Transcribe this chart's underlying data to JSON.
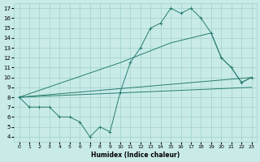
{
  "xlabel": "Humidex (Indice chaleur)",
  "bg_color": "#c8ebe8",
  "grid_color": "#a0d0cc",
  "line_color": "#2a7d6e",
  "xlim": [
    -0.5,
    23.5
  ],
  "ylim": [
    3.5,
    17.5
  ],
  "xticks": [
    0,
    1,
    2,
    3,
    4,
    5,
    6,
    7,
    8,
    9,
    10,
    11,
    12,
    13,
    14,
    15,
    16,
    17,
    18,
    19,
    20,
    21,
    22,
    23
  ],
  "yticks": [
    4,
    5,
    6,
    7,
    8,
    9,
    10,
    11,
    12,
    13,
    14,
    15,
    16,
    17
  ],
  "line1_x": [
    0,
    1,
    2,
    3,
    4,
    5,
    6,
    7,
    8,
    9,
    10,
    11,
    12,
    13,
    14,
    15,
    16,
    17,
    18,
    19,
    20,
    21,
    22,
    23
  ],
  "line1_y": [
    8,
    7,
    7,
    7,
    6,
    6,
    5.5,
    4,
    5,
    4.5,
    8.5,
    11.5,
    13,
    15,
    15.5,
    17,
    16.5,
    17,
    16,
    14.5,
    12,
    11,
    9.5,
    10
  ],
  "line2_x": [
    0,
    10,
    15,
    19,
    20,
    21,
    22,
    23
  ],
  "line2_y": [
    8,
    11.5,
    13.5,
    14.5,
    12,
    11,
    9.5,
    10
  ],
  "line3_x": [
    0,
    23
  ],
  "line3_y": [
    8,
    10
  ],
  "line4_x": [
    0,
    23
  ],
  "line4_y": [
    8,
    9
  ]
}
